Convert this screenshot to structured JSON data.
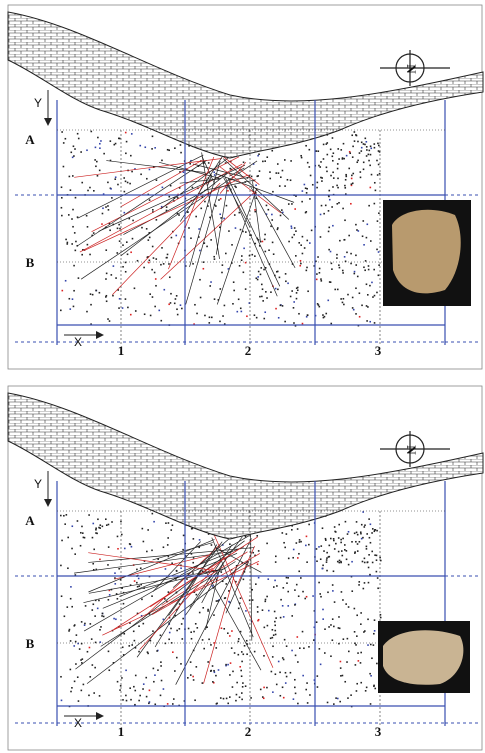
{
  "panels": [
    {
      "compass": "N",
      "y_axis": "Y",
      "x_axis": "X",
      "rows": [
        "A",
        "B"
      ],
      "columns": [
        "1",
        "2",
        "3"
      ]
    },
    {
      "compass": "N",
      "y_axis": "Y",
      "x_axis": "X",
      "rows": [
        "A",
        "B"
      ],
      "columns": [
        "1",
        "2",
        "3"
      ]
    }
  ]
}
